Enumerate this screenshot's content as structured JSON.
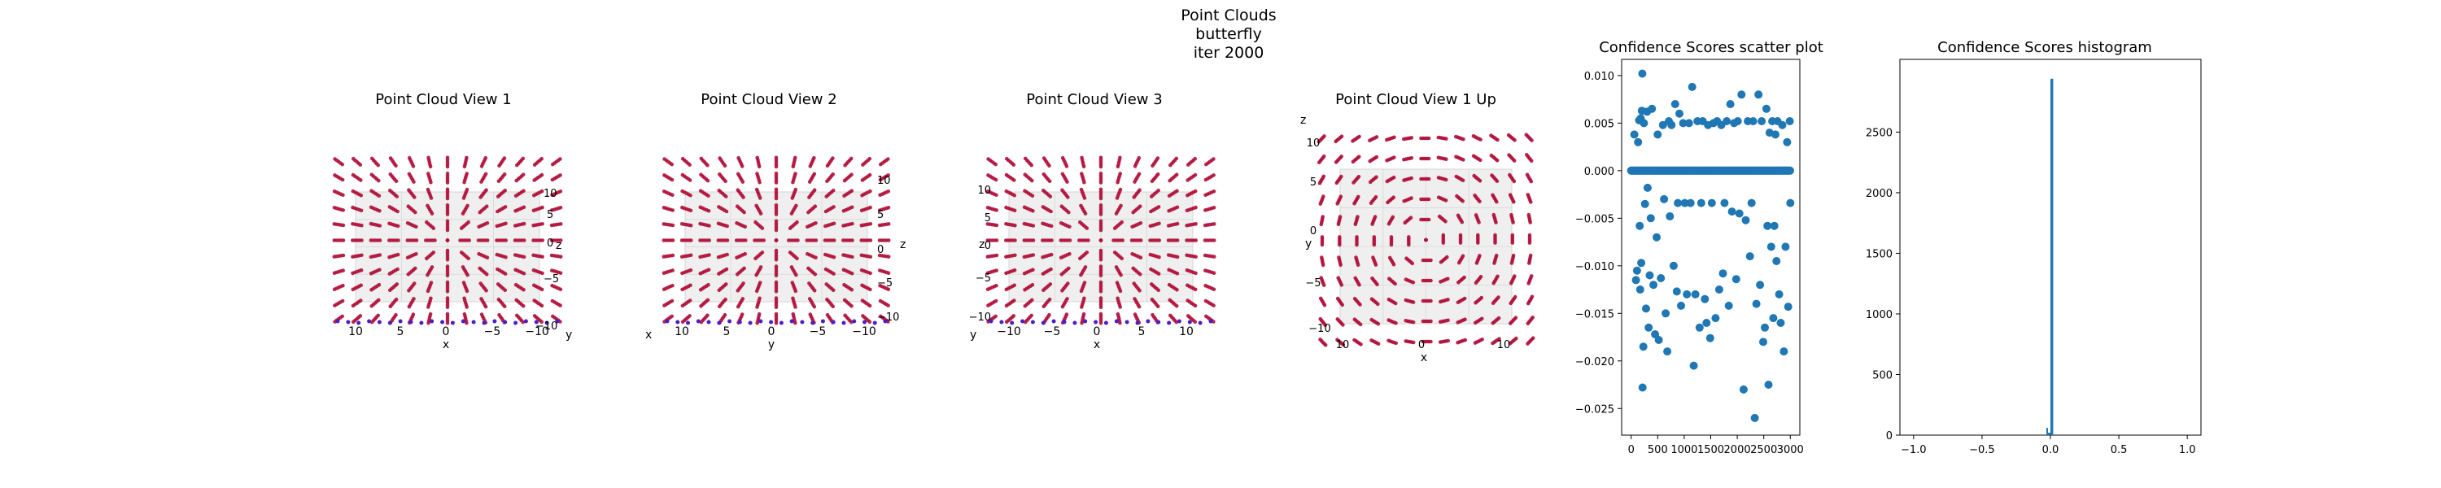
{
  "figure": {
    "title_lines": [
      "Point Clouds",
      "butterfly",
      "iter 2000"
    ]
  },
  "chart_data": [
    {
      "type": "scatter",
      "title": "Point Cloud View 1",
      "axes": {
        "x": {
          "label": "x",
          "ticks": [
            "10",
            "5",
            "0",
            "−5",
            "−10"
          ]
        },
        "y": {
          "label": "y"
        },
        "z": {
          "label": "z",
          "ticks": [
            "10",
            "5",
            "0",
            "−5",
            "−10"
          ]
        }
      },
      "colors": [
        "#b0103a",
        "#4b1fc8"
      ]
    },
    {
      "type": "scatter",
      "title": "Point Cloud View 2",
      "axes": {
        "x": {
          "label": "x"
        },
        "y": {
          "label": "y",
          "ticks": [
            "10",
            "5",
            "0",
            "−5",
            "−10"
          ]
        },
        "z": {
          "label": "z",
          "ticks": [
            "10",
            "5",
            "0",
            "−5",
            "−10"
          ]
        }
      },
      "colors": [
        "#b0103a",
        "#4b1fc8"
      ]
    },
    {
      "type": "scatter",
      "title": "Point Cloud View 3",
      "axes": {
        "x": {
          "label": "x",
          "ticks": [
            "−10",
            "−5",
            "0",
            "5",
            "10"
          ]
        },
        "y": {
          "label": "y"
        },
        "z": {
          "label": "z",
          "ticks": [
            "10",
            "5",
            "0",
            "−5",
            "−10"
          ]
        }
      },
      "colors": [
        "#b0103a",
        "#4b1fc8"
      ]
    },
    {
      "type": "scatter",
      "title": "Point Cloud View 1 Up",
      "axes": {
        "x": {
          "label": "x",
          "ticks": [
            "10",
            "0",
            "10"
          ]
        },
        "y": {
          "label": "y",
          "ticks": [
            "10",
            "5",
            "0",
            "−5",
            "−10"
          ]
        },
        "z": {
          "label": "z"
        }
      },
      "colors": [
        "#b0103a",
        "#4b1fc8"
      ]
    },
    {
      "type": "scatter",
      "title": "Confidence Scores scatter plot",
      "xlim": [
        -180,
        3180
      ],
      "ylim": [
        -0.0278,
        0.0117
      ],
      "xticks": [
        0,
        500,
        1000,
        1500,
        2000,
        2500,
        3000
      ],
      "yticks": [
        0.01,
        0.005,
        0.0,
        -0.005,
        -0.01,
        -0.015,
        -0.02,
        -0.025
      ],
      "ytick_labels": [
        "0.010",
        "0.005",
        "0.000",
        "−0.005",
        "−0.010",
        "−0.015",
        "−0.020",
        "−0.025"
      ],
      "color": "#1f77b4",
      "baseline": {
        "y": 0.0,
        "x_from": 0,
        "x_to": 3000
      },
      "points": [
        [
          60,
          0.0038
        ],
        [
          90,
          -0.0115
        ],
        [
          110,
          -0.0105
        ],
        [
          130,
          0.003
        ],
        [
          150,
          0.0053
        ],
        [
          160,
          -0.0058
        ],
        [
          170,
          -0.0125
        ],
        [
          180,
          0.0055
        ],
        [
          190,
          -0.0097
        ],
        [
          200,
          0.0063
        ],
        [
          210,
          0.0102
        ],
        [
          215,
          -0.0228
        ],
        [
          230,
          -0.0185
        ],
        [
          240,
          0.005
        ],
        [
          260,
          -0.0035
        ],
        [
          280,
          -0.0145
        ],
        [
          300,
          0.0062
        ],
        [
          310,
          -0.0018
        ],
        [
          330,
          -0.0165
        ],
        [
          350,
          -0.011
        ],
        [
          370,
          -0.005
        ],
        [
          390,
          0.0065
        ],
        [
          420,
          -0.012
        ],
        [
          450,
          -0.0172
        ],
        [
          480,
          -0.007
        ],
        [
          500,
          0.0038
        ],
        [
          520,
          -0.0178
        ],
        [
          560,
          -0.0113
        ],
        [
          600,
          0.0048
        ],
        [
          620,
          -0.003
        ],
        [
          650,
          -0.015
        ],
        [
          680,
          -0.019
        ],
        [
          710,
          0.0052
        ],
        [
          730,
          -0.0048
        ],
        [
          760,
          0.0048
        ],
        [
          800,
          -0.01
        ],
        [
          830,
          0.007
        ],
        [
          860,
          -0.0127
        ],
        [
          880,
          -0.0034
        ],
        [
          910,
          0.006
        ],
        [
          940,
          -0.0142
        ],
        [
          980,
          0.005
        ],
        [
          1010,
          -0.0034
        ],
        [
          1050,
          -0.013
        ],
        [
          1090,
          0.005
        ],
        [
          1120,
          -0.0034
        ],
        [
          1150,
          0.0088
        ],
        [
          1180,
          -0.0205
        ],
        [
          1210,
          -0.013
        ],
        [
          1250,
          0.0052
        ],
        [
          1290,
          -0.0165
        ],
        [
          1320,
          -0.0034
        ],
        [
          1350,
          0.0052
        ],
        [
          1390,
          -0.0135
        ],
        [
          1420,
          -0.016
        ],
        [
          1450,
          0.0048
        ],
        [
          1490,
          -0.0176
        ],
        [
          1520,
          -0.0034
        ],
        [
          1550,
          0.005
        ],
        [
          1590,
          -0.0155
        ],
        [
          1620,
          0.0052
        ],
        [
          1660,
          -0.0125
        ],
        [
          1700,
          0.0048
        ],
        [
          1730,
          -0.0108
        ],
        [
          1760,
          -0.0034
        ],
        [
          1800,
          0.0052
        ],
        [
          1840,
          -0.0142
        ],
        [
          1870,
          0.007
        ],
        [
          1900,
          -0.0043
        ],
        [
          1940,
          0.005
        ],
        [
          1980,
          -0.0114
        ],
        [
          2010,
          0.0052
        ],
        [
          2040,
          -0.0045
        ],
        [
          2080,
          0.008
        ],
        [
          2120,
          -0.023
        ],
        [
          2160,
          -0.0052
        ],
        [
          2200,
          0.0052
        ],
        [
          2240,
          -0.009
        ],
        [
          2270,
          -0.0034
        ],
        [
          2300,
          0.0052
        ],
        [
          2330,
          -0.026
        ],
        [
          2360,
          -0.014
        ],
        [
          2400,
          0.008
        ],
        [
          2430,
          -0.012
        ],
        [
          2460,
          0.0052
        ],
        [
          2490,
          -0.018
        ],
        [
          2520,
          -0.0165
        ],
        [
          2550,
          0.0065
        ],
        [
          2570,
          -0.0058
        ],
        [
          2590,
          -0.0225
        ],
        [
          2610,
          0.004
        ],
        [
          2640,
          -0.008
        ],
        [
          2660,
          0.0052
        ],
        [
          2680,
          -0.0155
        ],
        [
          2700,
          -0.0058
        ],
        [
          2720,
          0.0038
        ],
        [
          2740,
          -0.0095
        ],
        [
          2760,
          0.0052
        ],
        [
          2790,
          -0.013
        ],
        [
          2820,
          -0.016
        ],
        [
          2850,
          0.0048
        ],
        [
          2880,
          -0.019
        ],
        [
          2910,
          -0.008
        ],
        [
          2940,
          0.003
        ],
        [
          2960,
          -0.0143
        ],
        [
          2990,
          0.0052
        ],
        [
          3000,
          -0.0034
        ]
      ]
    },
    {
      "type": "bar",
      "title": "Confidence Scores histogram",
      "xlim": [
        -1.1,
        1.1
      ],
      "ylim": [
        0,
        3100
      ],
      "xticks": [
        -1.0,
        -0.5,
        0.0,
        0.5,
        1.0
      ],
      "xtick_labels": [
        "−1.0",
        "−0.5",
        "0.0",
        "0.5",
        "1.0"
      ],
      "yticks": [
        0,
        500,
        1000,
        1500,
        2000,
        2500
      ],
      "color": "#1f77b4",
      "bins": [
        {
          "x0": -0.03,
          "x1": -0.02,
          "count": 60
        },
        {
          "x0": -0.02,
          "x1": 0.0,
          "count": 20
        },
        {
          "x0": 0.0,
          "x1": 0.02,
          "count": 2940
        }
      ]
    }
  ]
}
